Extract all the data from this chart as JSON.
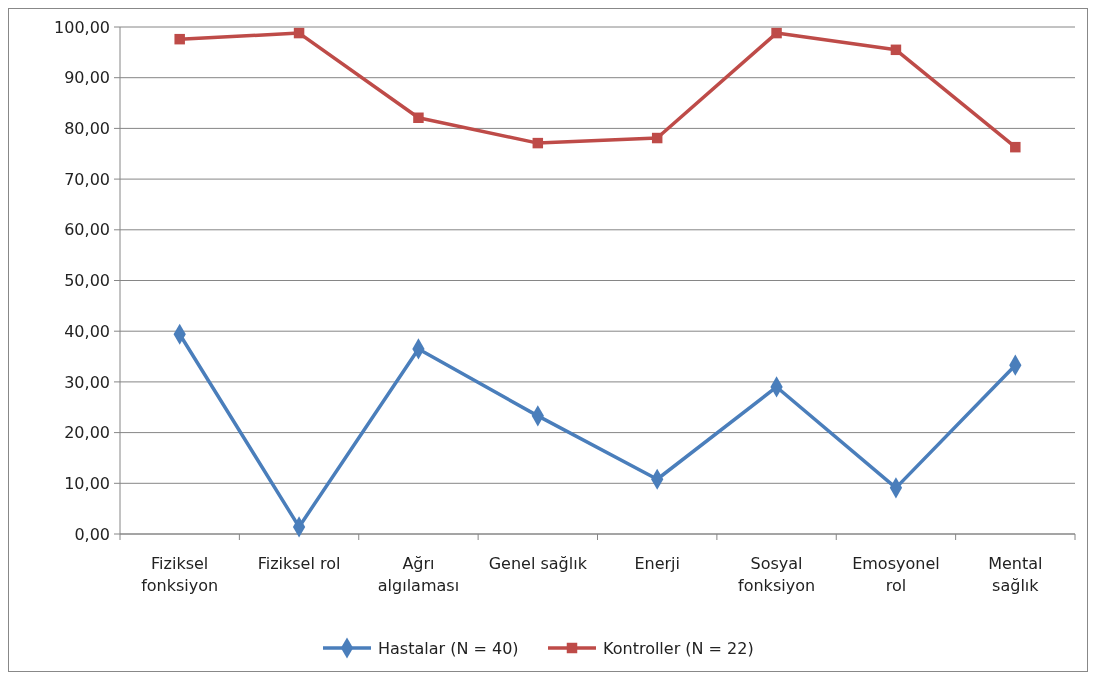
{
  "chart_data": {
    "type": "line",
    "categories": [
      "Fiziksel fonksiyon",
      "Fiziksel rol",
      "Ağrı algılaması",
      "Genel sağlık",
      "Enerji",
      "Sosyal fonksiyon",
      "Emosyonel rol",
      "Mental sağlık"
    ],
    "series": [
      {
        "name": "Hastalar (N = 40)",
        "color": "#4a7ebb",
        "marker": "diamond",
        "values": [
          39.4,
          1.4,
          36.5,
          23.3,
          10.8,
          29.0,
          9.1,
          33.3
        ]
      },
      {
        "name": "Kontroller (N = 22)",
        "color": "#be4b48",
        "marker": "square",
        "values": [
          97.6,
          98.8,
          82.1,
          77.1,
          78.1,
          98.8,
          95.5,
          76.3
        ]
      }
    ],
    "ylim": [
      0,
      100
    ],
    "yticks": [
      {
        "value": 0,
        "label": "0,00"
      },
      {
        "value": 10,
        "label": "10,00"
      },
      {
        "value": 20,
        "label": "20,00"
      },
      {
        "value": 30,
        "label": "30,00"
      },
      {
        "value": 40,
        "label": "40,00"
      },
      {
        "value": 50,
        "label": "50,00"
      },
      {
        "value": 60,
        "label": "60,00"
      },
      {
        "value": 70,
        "label": "70,00"
      },
      {
        "value": 80,
        "label": "80,00"
      },
      {
        "value": 90,
        "label": "90,00"
      },
      {
        "value": 100,
        "label": "100,00"
      }
    ],
    "grid": "y",
    "legend": "bottom",
    "line_style": "solid"
  }
}
